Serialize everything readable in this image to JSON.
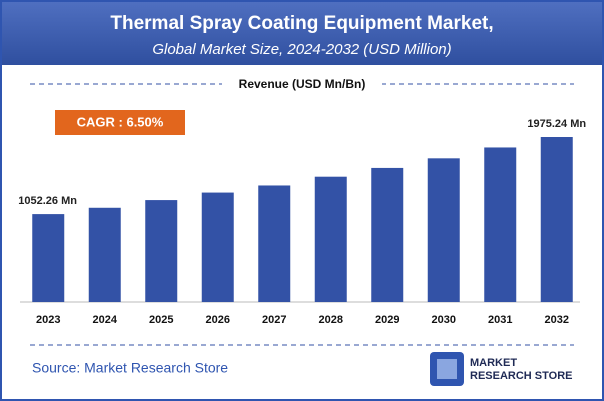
{
  "chart_data": {
    "type": "bar",
    "title": "Thermal Spray Coating Equipment Market,",
    "subtitle": "Global Market Size, 2024-2032 (USD Million)",
    "y_label": "Revenue (USD Mn/Bn)",
    "annotation": "CAGR : 6.50%",
    "source": "Source: Market Research Store",
    "logo_text": [
      "MARKET",
      "RESEARCH STORE"
    ],
    "categories": [
      "2023",
      "2024",
      "2025",
      "2026",
      "2027",
      "2028",
      "2029",
      "2030",
      "2031",
      "2032"
    ],
    "values": [
      1052.26,
      1128,
      1220,
      1310,
      1395,
      1500,
      1605,
      1720,
      1850,
      1975.24
    ],
    "value_labels": [
      "1052.26 Mn",
      null,
      null,
      null,
      null,
      null,
      null,
      null,
      null,
      "1975.24 Mn"
    ],
    "color": "#3352a6"
  }
}
